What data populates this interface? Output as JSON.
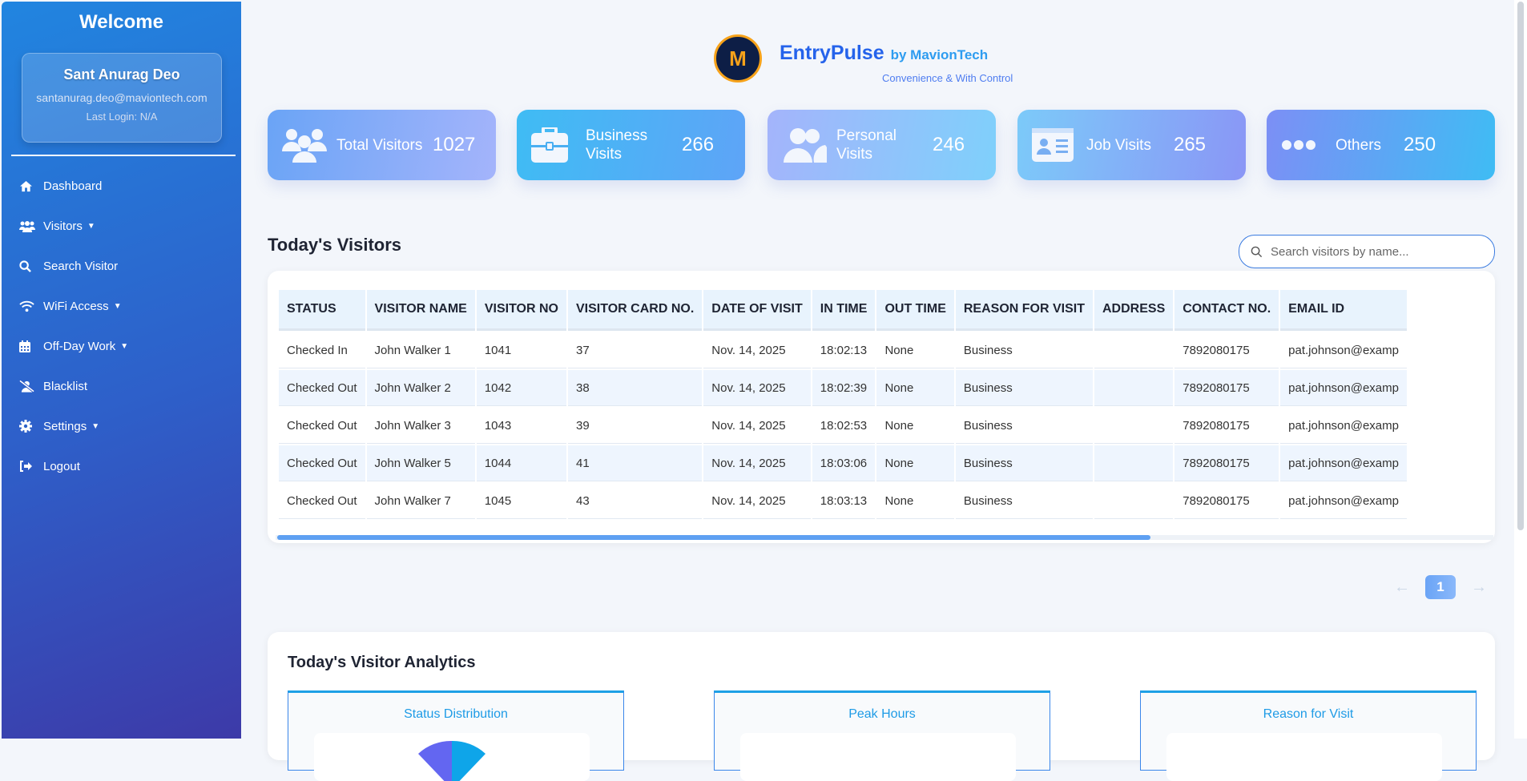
{
  "sidebar": {
    "welcome": "Welcome",
    "user": {
      "name": "Sant Anurag Deo",
      "email": "santanurag.deo@maviontech.com",
      "last_login": "Last Login: N/A"
    },
    "items": [
      {
        "label": "Dashboard",
        "icon": "home-icon"
      },
      {
        "label": "Visitors",
        "icon": "users-icon",
        "dropdown": true
      },
      {
        "label": "Search Visitor",
        "icon": "search-icon"
      },
      {
        "label": "WiFi Access",
        "icon": "wifi-icon",
        "dropdown": true
      },
      {
        "label": "Off-Day Work",
        "icon": "calendar-icon",
        "dropdown": true
      },
      {
        "label": "Blacklist",
        "icon": "user-slash-icon"
      },
      {
        "label": "Settings",
        "icon": "gear-icon",
        "dropdown": true
      },
      {
        "label": "Logout",
        "icon": "sign-out-icon"
      }
    ]
  },
  "header": {
    "logo_letter": "M",
    "brand": "EntryPulse",
    "by": "by MavionTech",
    "tagline": "Convenience & With Control"
  },
  "stats": [
    {
      "label": "Total Visitors",
      "value": "1027",
      "icon": "users-icon"
    },
    {
      "label": "Business Visits",
      "value": "266",
      "icon": "briefcase-icon"
    },
    {
      "label": "Personal Visits",
      "value": "246",
      "icon": "user-friends-icon"
    },
    {
      "label": "Job Visits",
      "value": "265",
      "icon": "id-card-icon"
    },
    {
      "label": "Others",
      "value": "250",
      "icon": "ellipsis-icon"
    }
  ],
  "visitors": {
    "title": "Today's Visitors",
    "search_placeholder": "Search visitors by name...",
    "columns": [
      "STATUS",
      "VISITOR NAME",
      "VISITOR NO",
      "VISITOR CARD NO.",
      "DATE OF VISIT",
      "IN TIME",
      "OUT TIME",
      "REASON FOR VISIT",
      "ADDRESS",
      "CONTACT NO.",
      "EMAIL ID"
    ],
    "rows": [
      [
        "Checked In",
        "John Walker 1",
        "1041",
        "37",
        "Nov. 14, 2025",
        "18:02:13",
        "None",
        "Business",
        "",
        "7892080175",
        "pat.johnson@examp"
      ],
      [
        "Checked Out",
        "John Walker 2",
        "1042",
        "38",
        "Nov. 14, 2025",
        "18:02:39",
        "None",
        "Business",
        "",
        "7892080175",
        "pat.johnson@examp"
      ],
      [
        "Checked Out",
        "John Walker 3",
        "1043",
        "39",
        "Nov. 14, 2025",
        "18:02:53",
        "None",
        "Business",
        "",
        "7892080175",
        "pat.johnson@examp"
      ],
      [
        "Checked Out",
        "John Walker 5",
        "1044",
        "41",
        "Nov. 14, 2025",
        "18:03:06",
        "None",
        "Business",
        "",
        "7892080175",
        "pat.johnson@examp"
      ],
      [
        "Checked Out",
        "John Walker 7",
        "1045",
        "43",
        "Nov. 14, 2025",
        "18:03:13",
        "None",
        "Business",
        "",
        "7892080175",
        "pat.johnson@examp"
      ]
    ]
  },
  "pagination": {
    "prev": "←",
    "current": "1",
    "next": "→"
  },
  "analytics": {
    "title": "Today's Visitor Analytics",
    "charts": [
      "Status Distribution",
      "Peak Hours",
      "Reason for Visit"
    ]
  },
  "colors": {
    "sidebar_top": "#2185e0",
    "sidebar_bottom": "#3d3aa8",
    "accent": "#2563eb"
  }
}
